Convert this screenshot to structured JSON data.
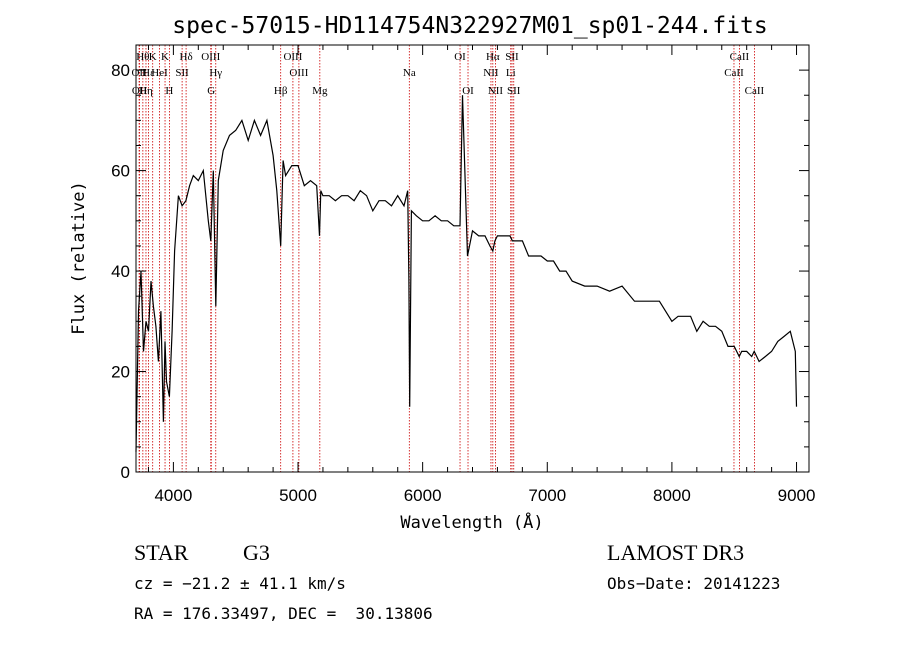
{
  "chart_data": {
    "type": "line",
    "title": "spec-57015-HD114754N322927M01_sp01-244.fits",
    "xlabel": "Wavelength (Å)",
    "ylabel": "Flux (relative)",
    "xlim": [
      3700,
      9100
    ],
    "ylim": [
      0,
      85
    ],
    "xticks": [
      4000,
      5000,
      6000,
      7000,
      8000,
      9000
    ],
    "yticks": [
      0,
      20,
      40,
      60,
      80
    ],
    "grid": false,
    "series": [
      {
        "x": [
          3700,
          3720,
          3740,
          3760,
          3780,
          3800,
          3820,
          3840,
          3860,
          3880,
          3900,
          3920,
          3933,
          3945,
          3968,
          3990,
          4010,
          4040,
          4070,
          4100,
          4130,
          4160,
          4200,
          4240,
          4280,
          4300,
          4320,
          4340,
          4360,
          4400,
          4450,
          4500,
          4550,
          4600,
          4650,
          4700,
          4750,
          4800,
          4830,
          4861,
          4880,
          4900,
          4950,
          5000,
          5050,
          5100,
          5150,
          5172,
          5183,
          5200,
          5250,
          5300,
          5350,
          5400,
          5450,
          5500,
          5550,
          5600,
          5650,
          5700,
          5750,
          5800,
          5850,
          5880,
          5890,
          5896,
          5910,
          5950,
          6000,
          6050,
          6100,
          6150,
          6200,
          6250,
          6280,
          6300,
          6320,
          6360,
          6400,
          6450,
          6500,
          6540,
          6563,
          6580,
          6600,
          6650,
          6700,
          6720,
          6750,
          6800,
          6850,
          6900,
          6950,
          7000,
          7050,
          7100,
          7150,
          7200,
          7300,
          7400,
          7500,
          7600,
          7700,
          7800,
          7900,
          8000,
          8050,
          8100,
          8150,
          8200,
          8250,
          8300,
          8350,
          8400,
          8450,
          8500,
          8540,
          8560,
          8600,
          8640,
          8660,
          8700,
          8750,
          8800,
          8850,
          8900,
          8950,
          8990,
          9000
        ],
        "y": [
          4,
          32,
          40,
          24,
          30,
          28,
          38,
          33,
          29,
          22,
          32,
          10,
          26,
          18,
          15,
          28,
          44,
          55,
          53,
          54,
          57,
          59,
          58,
          60,
          50,
          46,
          60,
          33,
          58,
          64,
          67,
          68,
          70,
          66,
          70,
          67,
          70,
          63,
          56,
          45,
          62,
          59,
          61,
          61,
          57,
          58,
          57,
          47,
          56,
          55,
          55,
          54,
          55,
          55,
          54,
          56,
          55,
          52,
          54,
          54,
          53,
          55,
          53,
          56,
          38,
          13,
          52,
          51,
          50,
          50,
          51,
          50,
          50,
          49,
          49,
          49,
          75,
          43,
          48,
          47,
          47,
          45,
          44,
          46,
          47,
          47,
          47,
          46,
          46,
          46,
          43,
          43,
          43,
          42,
          42,
          40,
          40,
          38,
          37,
          37,
          36,
          37,
          34,
          34,
          34,
          30,
          31,
          31,
          31,
          28,
          30,
          29,
          29,
          28,
          25,
          25,
          23,
          24,
          24,
          23,
          24,
          22,
          23,
          24,
          26,
          27,
          28,
          24,
          13
        ]
      }
    ],
    "line_labels": [
      {
        "x": 3725,
        "text": "OII",
        "row": 2
      },
      {
        "x": 3728,
        "text": "OII",
        "row": 3
      },
      {
        "x": 3755,
        "text": "Hθ",
        "row": 1
      },
      {
        "x": 3780,
        "text": "Hη",
        "row": 3
      },
      {
        "x": 3800,
        "text": "Hε",
        "row": 2
      },
      {
        "x": 3834,
        "text": "K",
        "row": 1
      },
      {
        "x": 3889,
        "text": "HeI",
        "row": 2
      },
      {
        "x": 3933,
        "text": "K",
        "row": 1
      },
      {
        "x": 3968,
        "text": "H",
        "row": 3
      },
      {
        "x": 4070,
        "text": "SII",
        "row": 2
      },
      {
        "x": 4102,
        "text": "Hδ",
        "row": 1
      },
      {
        "x": 4300,
        "text": "OIII",
        "row": 1
      },
      {
        "x": 4304,
        "text": "G",
        "row": 3
      },
      {
        "x": 4340,
        "text": "Hγ",
        "row": 2
      },
      {
        "x": 4861,
        "text": "Hβ",
        "row": 3
      },
      {
        "x": 4959,
        "text": "OIII",
        "row": 1
      },
      {
        "x": 5007,
        "text": "OIII",
        "row": 2
      },
      {
        "x": 5175,
        "text": "Mg",
        "row": 3
      },
      {
        "x": 5893,
        "text": "Na",
        "row": 2
      },
      {
        "x": 6300,
        "text": "OI",
        "row": 1
      },
      {
        "x": 6364,
        "text": "OI",
        "row": 3
      },
      {
        "x": 6548,
        "text": "NII",
        "row": 2
      },
      {
        "x": 6563,
        "text": "Hα",
        "row": 1
      },
      {
        "x": 6584,
        "text": "NII",
        "row": 3
      },
      {
        "x": 6707,
        "text": "Li",
        "row": 2
      },
      {
        "x": 6717,
        "text": "SII",
        "row": 1
      },
      {
        "x": 6731,
        "text": "SII",
        "row": 3
      },
      {
        "x": 8498,
        "text": "CaII",
        "row": 2
      },
      {
        "x": 8542,
        "text": "CaII",
        "row": 1
      },
      {
        "x": 8662,
        "text": "CaII",
        "row": 3
      }
    ],
    "line_marker_color": "#cc0000"
  },
  "info": {
    "class": "STAR",
    "subclass": "G3",
    "survey": "LAMOST DR3",
    "cz": "cz = −21.2 ± 41.1 km/s",
    "obs_date": "Obs−Date: 20141223",
    "coords": "RA = 176.33497, DEC =  30.13806"
  }
}
